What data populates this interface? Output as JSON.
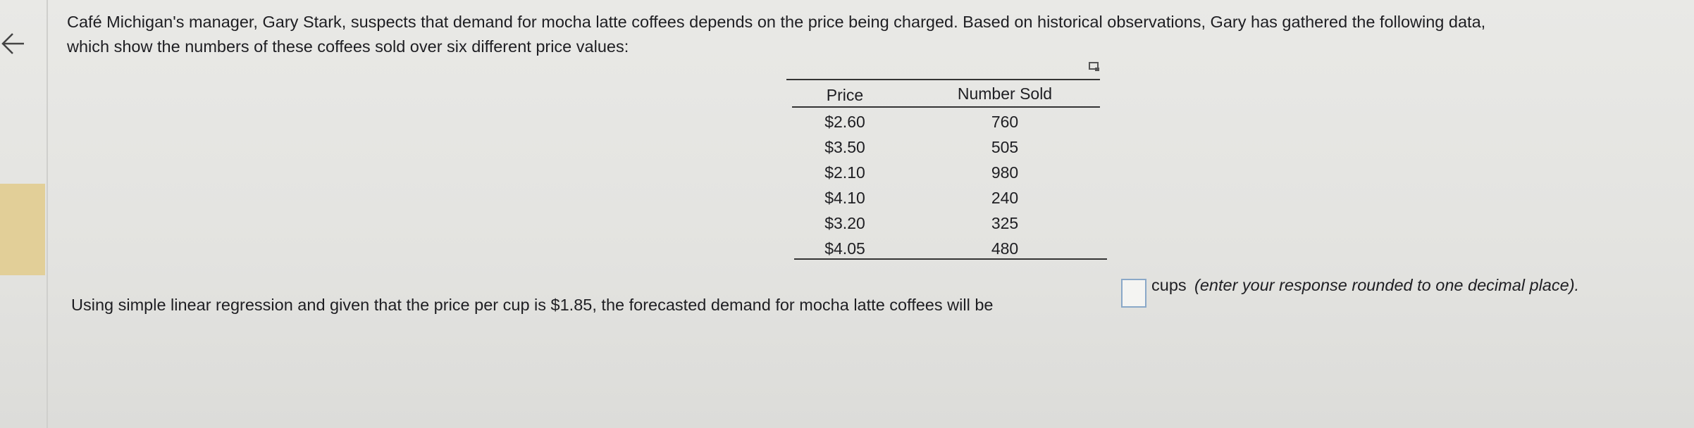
{
  "problem": {
    "intro_lines": [
      "Café Michigan's manager, Gary Stark, suspects that demand for mocha latte coffees depends on the price being charged.  Based on historical observations, Gary has gathered the following data,",
      "which show the numbers of these coffees sold over six different price values:"
    ],
    "table": {
      "headers": [
        "Price",
        "Number Sold"
      ],
      "rows": [
        [
          "$2.60",
          "760"
        ],
        [
          "$3.50",
          "505"
        ],
        [
          "$2.10",
          "980"
        ],
        [
          "$4.10",
          "240"
        ],
        [
          "$3.20",
          "325"
        ],
        [
          "$4.05",
          "480"
        ]
      ]
    },
    "question": {
      "before": "Using simple linear regression and given that the price per cup is $1.85, the forecasted demand for mocha latte coffees will be",
      "unit": "cups",
      "note": "(enter your response rounded to one decimal place)."
    }
  }
}
